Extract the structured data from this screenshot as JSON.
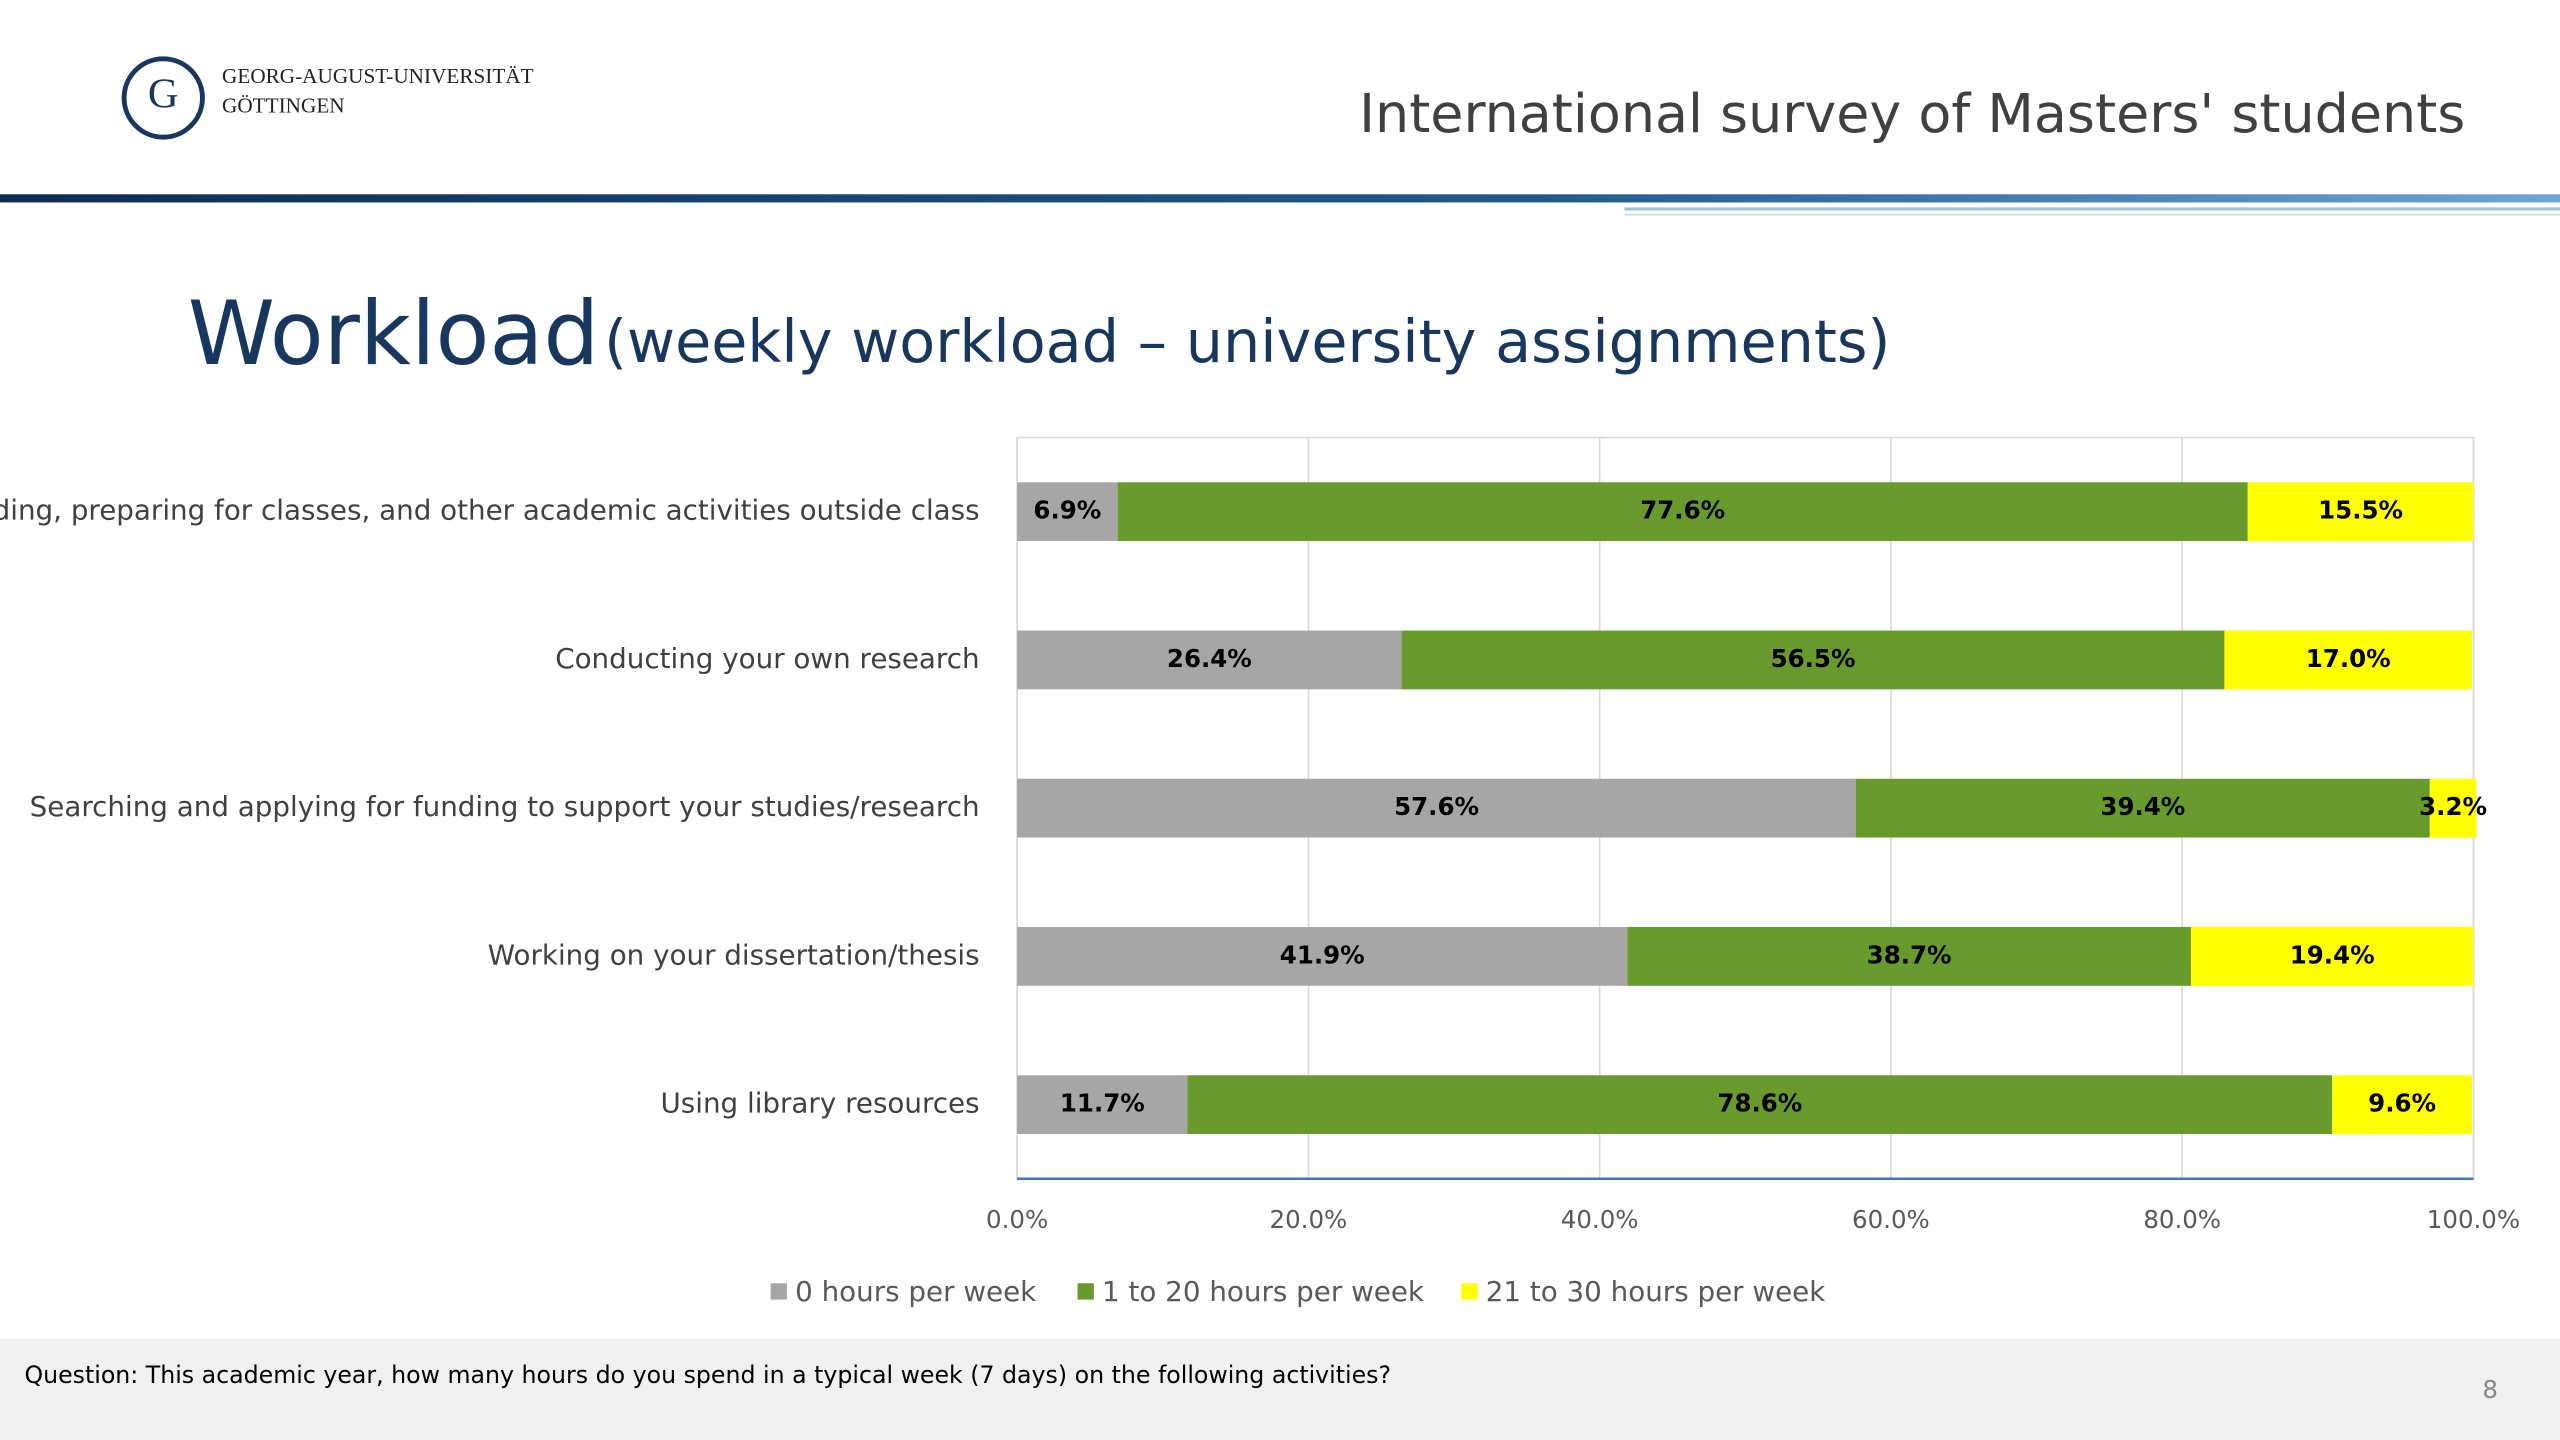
{
  "header": {
    "university": [
      "GEORG-AUGUST-UNIVERSITÄT",
      "GÖTTINGEN"
    ],
    "presentation_title": "International survey of Masters' students"
  },
  "chart_data": {
    "type": "stacked-bar-horizontal",
    "title": "Workload",
    "subtitle": "(weekly workload – university assignments)",
    "categories": [
      "Reading, preparing for classes, and other academic activities outside class",
      "Conducting your own research",
      "Searching and applying for funding to support your studies/research",
      "Working on your dissertation/thesis",
      "Using library resources"
    ],
    "series": [
      {
        "name": "0 hours per week",
        "color": "#a6a6a6",
        "values": [
          6.9,
          26.4,
          57.6,
          41.9,
          11.7
        ],
        "value_labels": [
          "6.9%",
          "26.4%",
          "57.6%",
          "41.9%",
          "11.7%"
        ]
      },
      {
        "name": "1 to 20 hours per week",
        "color": "#689a2e",
        "values": [
          77.6,
          56.5,
          39.4,
          38.7,
          78.6
        ],
        "value_labels": [
          "77.6%",
          "56.5%",
          "39.4%",
          "38.7%",
          "78.6%"
        ]
      },
      {
        "name": "21 to 30 hours per week",
        "color": "#ffff00",
        "values": [
          15.5,
          17.0,
          3.2,
          19.4,
          9.6
        ],
        "value_labels": [
          "15.5%",
          "17.0%",
          "3.2%",
          "19.4%",
          "9.6%"
        ]
      }
    ],
    "xlim": [
      0,
      100
    ],
    "xticks": [
      {
        "value": 0,
        "label": "0.0%"
      },
      {
        "value": 20,
        "label": "20.0%"
      },
      {
        "value": 40,
        "label": "40.0%"
      },
      {
        "value": 60,
        "label": "60.0%"
      },
      {
        "value": 80,
        "label": "80.0%"
      },
      {
        "value": 100,
        "label": "100.0%"
      }
    ],
    "grid": true,
    "legend": "bottom"
  },
  "footer": {
    "question": "Question: This academic year, how many hours do you spend in a typical week (7 days) on the following activities?",
    "page_number": 8
  }
}
